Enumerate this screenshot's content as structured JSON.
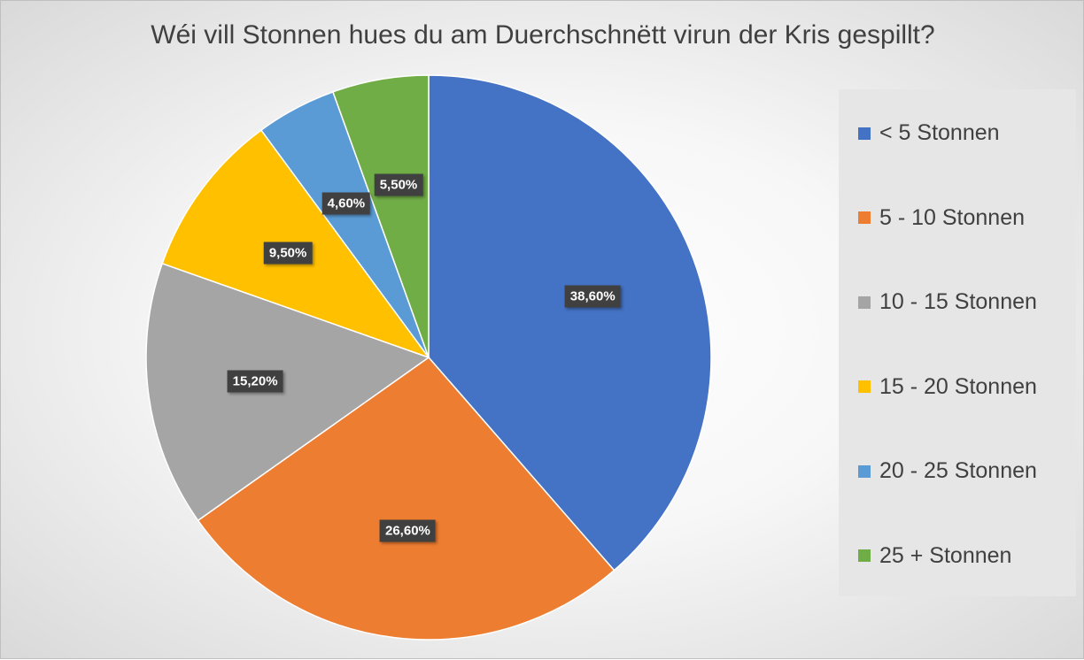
{
  "chart_data": {
    "type": "pie",
    "title": "Wéi vill Stonnen hues du am Duerchschnëtt virun der Kris gespillt?",
    "categories": [
      "< 5 Stonnen",
      "5 - 10 Stonnen",
      "10 - 15 Stonnen",
      "15 - 20 Stonnen",
      "20 - 25 Stonnen",
      "25 + Stonnen"
    ],
    "values": [
      38.6,
      26.6,
      15.2,
      9.5,
      4.6,
      5.5
    ],
    "value_labels": [
      "38,60%",
      "26,60%",
      "15,20%",
      "9,50%",
      "4,60%",
      "5,50%"
    ],
    "colors": [
      "#4472c4",
      "#ed7d31",
      "#a5a5a5",
      "#ffc000",
      "#5b9bd5",
      "#70ad47"
    ],
    "start_angle": "12 o'clock",
    "direction": "clockwise",
    "legend_position": "right"
  }
}
